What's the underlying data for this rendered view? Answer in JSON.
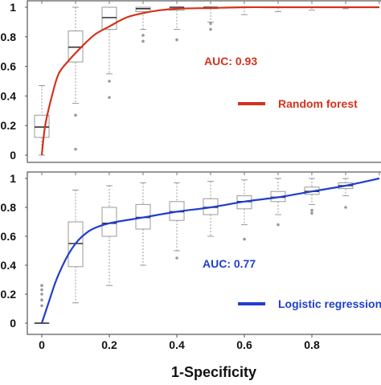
{
  "chart_data": [
    {
      "type": "line",
      "panel": "top",
      "title": "",
      "xlabel": "",
      "ylabel": "",
      "xlim": [
        0,
        1
      ],
      "ylim": [
        0,
        1
      ],
      "yticks": [
        "0",
        "0.2",
        "0.4",
        "0.6",
        "0.8",
        "1"
      ],
      "yticks_values": [
        0,
        0.2,
        0.4,
        0.6,
        0.8,
        1
      ],
      "show_xticks": false,
      "series": [
        {
          "name": "Random forest",
          "color": "#d4321c",
          "x": [
            0,
            0.01,
            0.03,
            0.05,
            0.08,
            0.1,
            0.13,
            0.16,
            0.2,
            0.25,
            0.3,
            0.35,
            0.4,
            0.5,
            0.6,
            0.7,
            0.8,
            0.9,
            1.0
          ],
          "y": [
            0,
            0.2,
            0.4,
            0.55,
            0.64,
            0.69,
            0.76,
            0.82,
            0.87,
            0.93,
            0.96,
            0.98,
            0.99,
            0.995,
            1.0,
            1.0,
            1.0,
            1.0,
            1.0
          ]
        }
      ],
      "boxplots": [
        {
          "x": 0.0,
          "whisker_low": 0.0,
          "q1": 0.12,
          "median": 0.19,
          "q3": 0.27,
          "whisker_high": 0.47,
          "outliers": []
        },
        {
          "x": 0.1,
          "whisker_low": 0.35,
          "q1": 0.63,
          "median": 0.73,
          "q3": 0.84,
          "whisker_high": 1.0,
          "outliers": [
            0.04,
            0.27
          ]
        },
        {
          "x": 0.2,
          "whisker_low": 0.55,
          "q1": 0.85,
          "median": 0.93,
          "q3": 1.0,
          "whisker_high": 1.0,
          "outliers": [
            0.39,
            0.5
          ]
        },
        {
          "x": 0.3,
          "whisker_low": 0.85,
          "q1": 0.97,
          "median": 0.99,
          "q3": 1.0,
          "whisker_high": 1.0,
          "outliers": [
            0.77,
            0.81
          ]
        },
        {
          "x": 0.4,
          "whisker_low": 0.85,
          "q1": 0.98,
          "median": 1.0,
          "q3": 1.0,
          "whisker_high": 1.0,
          "outliers": [
            0.78
          ]
        },
        {
          "x": 0.5,
          "whisker_low": 0.9,
          "q1": 0.99,
          "median": 1.0,
          "q3": 1.0,
          "whisker_high": 1.0,
          "outliers": [
            0.85,
            0.89
          ]
        },
        {
          "x": 0.6,
          "whisker_low": 0.95,
          "q1": 1.0,
          "median": 1.0,
          "q3": 1.0,
          "whisker_high": 1.0,
          "outliers": []
        },
        {
          "x": 0.7,
          "whisker_low": 0.97,
          "q1": 1.0,
          "median": 1.0,
          "q3": 1.0,
          "whisker_high": 1.0,
          "outliers": []
        },
        {
          "x": 0.8,
          "whisker_low": 0.98,
          "q1": 1.0,
          "median": 1.0,
          "q3": 1.0,
          "whisker_high": 1.0,
          "outliers": []
        },
        {
          "x": 0.9,
          "whisker_low": 0.99,
          "q1": 1.0,
          "median": 1.0,
          "q3": 1.0,
          "whisker_high": 1.0,
          "outliers": []
        }
      ],
      "auc_label": "AUC: 0.93",
      "legend_label": "Random forest",
      "legend_position": "right"
    },
    {
      "type": "line",
      "panel": "bottom",
      "title": "",
      "xlabel": "1-Specificity",
      "ylabel": "",
      "xlim": [
        0,
        1
      ],
      "ylim": [
        0,
        1
      ],
      "xticks": [
        "0",
        "0.2",
        "0.4",
        "0.6",
        "0.8"
      ],
      "xticks_values": [
        0,
        0.2,
        0.4,
        0.6,
        0.8
      ],
      "yticks": [
        "0",
        "0.2",
        "0.4",
        "0.6",
        "0.8",
        "1"
      ],
      "yticks_values": [
        0,
        0.2,
        0.4,
        0.6,
        0.8,
        1
      ],
      "series": [
        {
          "name": "Logistic regression",
          "color": "#1f3fcc",
          "x": [
            0,
            0.02,
            0.04,
            0.06,
            0.08,
            0.1,
            0.12,
            0.15,
            0.2,
            0.3,
            0.4,
            0.5,
            0.6,
            0.7,
            0.8,
            0.9,
            1.0
          ],
          "y": [
            0,
            0.14,
            0.28,
            0.39,
            0.48,
            0.55,
            0.6,
            0.65,
            0.69,
            0.73,
            0.77,
            0.8,
            0.84,
            0.87,
            0.91,
            0.95,
            1.0
          ]
        }
      ],
      "boxplots": [
        {
          "x": 0.0,
          "whisker_low": 0.0,
          "q1": 0.0,
          "median": 0.0,
          "q3": 0.0,
          "whisker_high": 0.0,
          "outliers": [
            0.12,
            0.16,
            0.2,
            0.23,
            0.26
          ]
        },
        {
          "x": 0.1,
          "whisker_low": 0.14,
          "q1": 0.39,
          "median": 0.55,
          "q3": 0.7,
          "whisker_high": 0.92,
          "outliers": []
        },
        {
          "x": 0.2,
          "whisker_low": 0.26,
          "q1": 0.6,
          "median": 0.69,
          "q3": 0.8,
          "whisker_high": 0.95,
          "outliers": []
        },
        {
          "x": 0.3,
          "whisker_low": 0.4,
          "q1": 0.65,
          "median": 0.73,
          "q3": 0.82,
          "whisker_high": 0.97,
          "outliers": []
        },
        {
          "x": 0.4,
          "whisker_low": 0.5,
          "q1": 0.71,
          "median": 0.77,
          "q3": 0.84,
          "whisker_high": 0.97,
          "outliers": [
            0.45
          ]
        },
        {
          "x": 0.5,
          "whisker_low": 0.6,
          "q1": 0.75,
          "median": 0.8,
          "q3": 0.86,
          "whisker_high": 0.98,
          "outliers": []
        },
        {
          "x": 0.6,
          "whisker_low": 0.68,
          "q1": 0.79,
          "median": 0.84,
          "q3": 0.88,
          "whisker_high": 0.99,
          "outliers": [
            0.58
          ]
        },
        {
          "x": 0.7,
          "whisker_low": 0.75,
          "q1": 0.84,
          "median": 0.87,
          "q3": 0.91,
          "whisker_high": 1.0,
          "outliers": [
            0.68
          ]
        },
        {
          "x": 0.8,
          "whisker_low": 0.82,
          "q1": 0.89,
          "median": 0.91,
          "q3": 0.94,
          "whisker_high": 1.0,
          "outliers": [
            0.76,
            0.78
          ]
        },
        {
          "x": 0.9,
          "whisker_low": 0.88,
          "q1": 0.93,
          "median": 0.95,
          "q3": 0.97,
          "whisker_high": 1.0,
          "outliers": [
            0.8
          ]
        }
      ],
      "auc_label": "AUC: 0.77",
      "legend_label": "Logistic regression",
      "legend_position": "right"
    }
  ]
}
